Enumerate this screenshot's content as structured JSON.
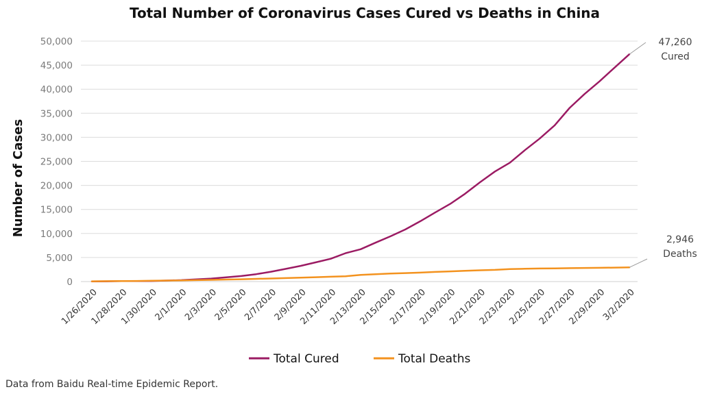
{
  "chart_data": {
    "type": "line",
    "title": "Total Number of Coronavirus Cases Cured vs Deaths in China",
    "xlabel": "",
    "ylabel": "Number of Cases",
    "ylim": [
      0,
      50000
    ],
    "yticks": [
      "0",
      "5,000",
      "10,000",
      "15,000",
      "20,000",
      "25,000",
      "30,000",
      "35,000",
      "40,000",
      "45,000",
      "50,000"
    ],
    "grid": true,
    "legend": "bottom",
    "x": [
      "1/26/2020",
      "1/27/2020",
      "1/28/2020",
      "1/29/2020",
      "1/30/2020",
      "1/31/2020",
      "2/1/2020",
      "2/2/2020",
      "2/3/2020",
      "2/4/2020",
      "2/5/2020",
      "2/6/2020",
      "2/7/2020",
      "2/8/2020",
      "2/9/2020",
      "2/10/2020",
      "2/11/2020",
      "2/12/2020",
      "2/13/2020",
      "2/14/2020",
      "2/15/2020",
      "2/16/2020",
      "2/17/2020",
      "2/18/2020",
      "2/19/2020",
      "2/20/2020",
      "2/21/2020",
      "2/22/2020",
      "2/23/2020",
      "2/24/2020",
      "2/25/2020",
      "2/26/2020",
      "2/27/2020",
      "2/28/2020",
      "2/29/2020",
      "3/1/2020",
      "3/2/2020"
    ],
    "xticks": [
      "1/26/2020",
      "1/28/2020",
      "1/30/2020",
      "2/1/2020",
      "2/3/2020",
      "2/5/2020",
      "2/7/2020",
      "2/9/2020",
      "2/11/2020",
      "2/13/2020",
      "2/15/2020",
      "2/17/2020",
      "2/19/2020",
      "2/21/2020",
      "2/23/2020",
      "2/25/2020",
      "2/27/2020",
      "2/29/2020",
      "3/2/2020"
    ],
    "series": [
      {
        "name": "Total Cured",
        "color": "#9b1b63",
        "values": [
          49,
          58,
          101,
          120,
          135,
          214,
          295,
          475,
          632,
          892,
          1153,
          1540,
          2050,
          2649,
          3281,
          3996,
          4740,
          5911,
          6723,
          8096,
          9419,
          10844,
          12552,
          14376,
          16155,
          18264,
          20659,
          22888,
          24734,
          27323,
          29745,
          32495,
          36117,
          39002,
          41625,
          44462,
          47260
        ]
      },
      {
        "name": "Total Deaths",
        "color": "#f3921e",
        "values": [
          56,
          80,
          106,
          132,
          170,
          213,
          259,
          304,
          361,
          425,
          490,
          563,
          636,
          722,
          811,
          908,
          1016,
          1113,
          1380,
          1523,
          1665,
          1770,
          1868,
          2004,
          2118,
          2236,
          2345,
          2442,
          2592,
          2663,
          2715,
          2744,
          2788,
          2835,
          2870,
          2912,
          2946
        ]
      }
    ],
    "annotations": [
      {
        "series": "Total Cured",
        "value": "47,260",
        "label": "Cured"
      },
      {
        "series": "Total Deaths",
        "value": "2,946",
        "label": "Deaths"
      }
    ]
  },
  "source_note": "Data from Baidu Real-time Epidemic Report."
}
